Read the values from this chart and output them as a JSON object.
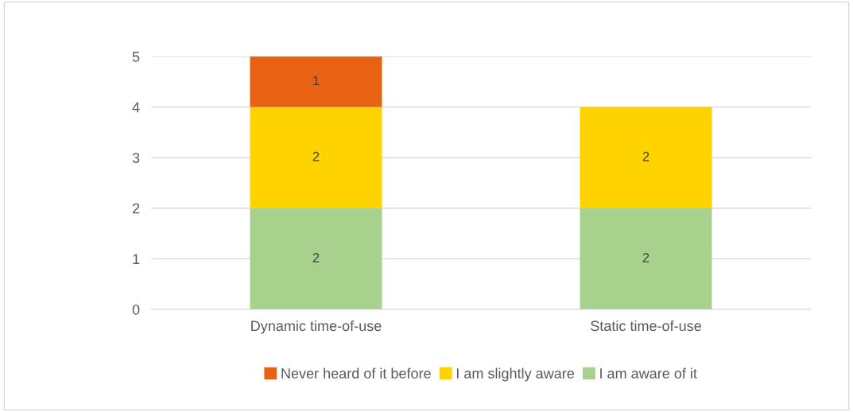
{
  "chart_data": {
    "type": "bar",
    "stacked": true,
    "categories": [
      "Dynamic time-of-use",
      "Static time-of-use"
    ],
    "series": [
      {
        "name": "I am aware of it",
        "color": "#a9d18e",
        "values": [
          2,
          2
        ]
      },
      {
        "name": "I am slightly aware",
        "color": "#ffd300",
        "values": [
          2,
          2
        ]
      },
      {
        "name": "Never heard of it before",
        "color": "#e86214",
        "values": [
          1,
          null
        ]
      }
    ],
    "ylim": [
      0,
      5
    ],
    "yticks": [
      0,
      1,
      2,
      3,
      4,
      5
    ],
    "grid": "y",
    "legend": "bottom",
    "data_labels": true
  }
}
